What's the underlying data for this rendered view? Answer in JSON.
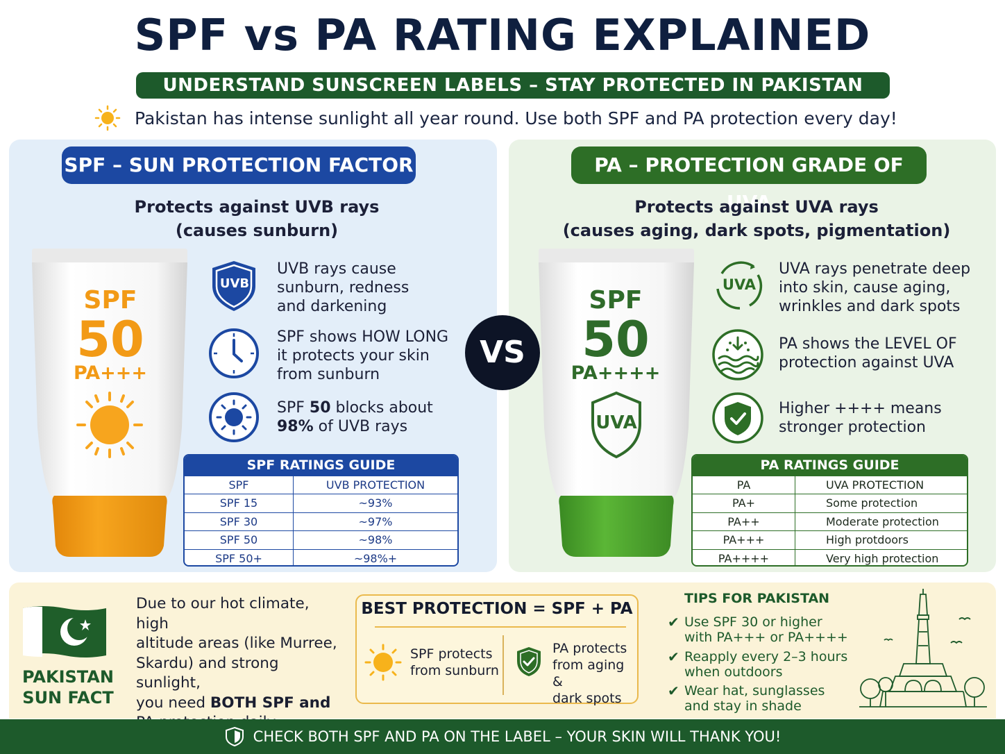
{
  "header": {
    "title": "SPF vs PA RATING EXPLAINED",
    "subtitle": "UNDERSTAND SUNSCREEN LABELS – STAY PROTECTED IN PAKISTAN",
    "intro": "Pakistan has intense sunlight all year round. Use both SPF and PA protection every day!"
  },
  "spf": {
    "pill": "SPF – SUN PROTECTION FACTOR",
    "protects_line1": "Protects against UVB rays",
    "protects_line2": "(causes sunburn)",
    "tube": {
      "label": "SPF",
      "number": "50",
      "pa": "PA+++"
    },
    "features": [
      {
        "icon": "uvb-shield-icon",
        "badge": "UVB",
        "text1": "UVB rays cause",
        "text2": "sunburn, redness",
        "text3": "and darkening"
      },
      {
        "icon": "clock-icon",
        "text1": "SPF shows HOW LONG",
        "text2": "it protects your skin",
        "text3": "from sunburn"
      },
      {
        "icon": "sun-target-icon",
        "text1a": "SPF ",
        "text1b": "50",
        "text1c": " blocks about",
        "text2a": "98%",
        "text2b": " of UVB rays"
      }
    ],
    "guide": {
      "title": "SPF RATINGS GUIDE",
      "col1": "SPF",
      "col2": "UVB PROTECTION",
      "rows": [
        {
          "a": "SPF 15",
          "b": "~93%"
        },
        {
          "a": "SPF 30",
          "b": "~97%"
        },
        {
          "a": "SPF 50",
          "b": "~98%"
        },
        {
          "a": "SPF 50+",
          "b": "~98%+"
        }
      ]
    },
    "colors": {
      "accent": "#1c48a2",
      "tube": "#f29a16"
    }
  },
  "vs": "VS",
  "pa": {
    "pill": "PA – PROTECTION GRADE OF UVA",
    "protects_line1": "Protects against UVA rays",
    "protects_line2": "(causes aging, dark spots, pigmentation)",
    "tube": {
      "label": "SPF",
      "number": "50",
      "pa": "PA++++",
      "badge": "UVA"
    },
    "features": [
      {
        "icon": "uva-circle-icon",
        "badge": "UVA",
        "text1": "UVA rays penetrate deep",
        "text2": "into skin, cause aging,",
        "text3": "wrinkles and dark spots"
      },
      {
        "icon": "waves-icon",
        "text1": "PA shows the LEVEL OF",
        "text2": "protection against UVA"
      },
      {
        "icon": "shield-check-icon",
        "text1": "Higher ++++ means",
        "text2": "stronger protection"
      }
    ],
    "guide": {
      "title": "PA RATINGS GUIDE",
      "col1": "PA",
      "col2": "UVA PROTECTION",
      "rows": [
        {
          "a": "PA+",
          "b": "Some protection"
        },
        {
          "a": "PA++",
          "b": "Moderate protection"
        },
        {
          "a": "PA+++",
          "b": "High protdoors"
        },
        {
          "a": "PA++++",
          "b": "Very high protection"
        }
      ]
    },
    "colors": {
      "accent": "#2d6e26",
      "tube": "#4aa02c"
    }
  },
  "bottom": {
    "fact_title1": "PAKISTAN",
    "fact_title2": "SUN FACT",
    "desc_line1": "Due to our hot climate, high",
    "desc_line2": "altitude areas (like Murree,",
    "desc_line3": "Skardu) and strong sunlight,",
    "desc_line4a": "you need ",
    "desc_line4b": "BOTH SPF and",
    "desc_line5": "PA protection daily.",
    "best_title": "BEST PROTECTION = SPF + PA",
    "best_spf1": "SPF protects",
    "best_spf2": "from sunburn",
    "best_pa1": "PA protects",
    "best_pa2": "from aging &",
    "best_pa3": "dark spots",
    "tips_title": "TIPS FOR PAKISTAN",
    "tips": [
      {
        "l1": "Use SPF 30 or higher",
        "l2": "with PA+++ or PA++++"
      },
      {
        "l1": "Reapply every 2–3 hours",
        "l2": "when outdoors"
      },
      {
        "l1": "Wear hat, sunglasses",
        "l2": "and stay in shade"
      }
    ]
  },
  "footer": "CHECK BOTH SPF AND PA ON THE LABEL – YOUR SKIN WILL THANK YOU!"
}
